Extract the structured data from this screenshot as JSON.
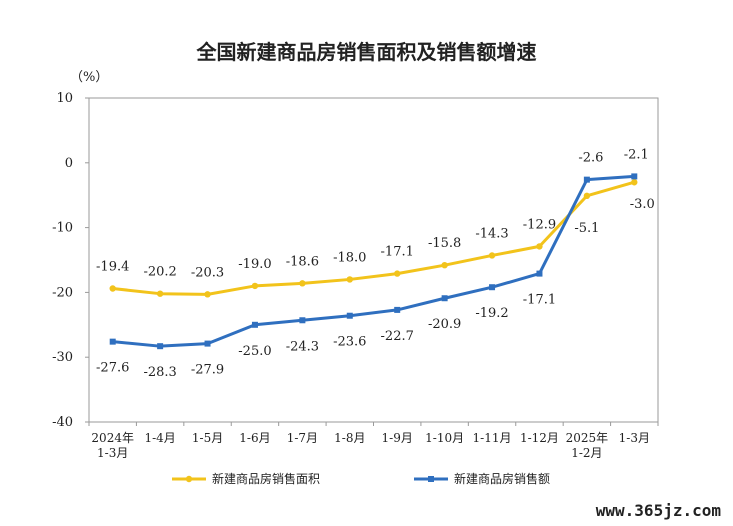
{
  "chart_data": {
    "type": "line",
    "title": "全国新建商品房销售面积及销售额增速",
    "unit_label": "（%）",
    "categories": [
      "2024年\n1-3月",
      "1-4月",
      "1-5月",
      "1-6月",
      "1-7月",
      "1-8月",
      "1-9月",
      "1-10月",
      "1-11月",
      "1-12月",
      "2025年\n1-2月",
      "1-3月"
    ],
    "ylim": [
      -40,
      10
    ],
    "yticks": [
      10,
      0,
      -10,
      -20,
      -30,
      -40
    ],
    "grid": false,
    "legend_position": "bottom",
    "series": [
      {
        "name": "新建商品房销售面积",
        "color": "#f2c31b",
        "values": [
          -19.4,
          -20.2,
          -20.3,
          -19.0,
          -18.6,
          -18.0,
          -17.1,
          -15.8,
          -14.3,
          -12.9,
          -5.1,
          -3.0
        ],
        "labels": [
          "-19.4",
          "-20.2",
          "-20.3",
          "-19.0",
          "-18.6",
          "-18.0",
          "-17.1",
          "-15.8",
          "-14.3",
          "-12.9",
          "-5.1",
          "-3.0"
        ]
      },
      {
        "name": "新建商品房销售额",
        "color": "#2f6fbf",
        "values": [
          -27.6,
          -28.3,
          -27.9,
          -25.0,
          -24.3,
          -23.6,
          -22.7,
          -20.9,
          -19.2,
          -17.1,
          -2.6,
          -2.1
        ],
        "labels": [
          "-27.6",
          "-28.3",
          "-27.9",
          "-25.0",
          "-24.3",
          "-23.6",
          "-22.7",
          "-20.9",
          "-19.2",
          "-17.1",
          "-2.6",
          "-2.1"
        ]
      }
    ]
  },
  "watermark": "www.365jz.com"
}
